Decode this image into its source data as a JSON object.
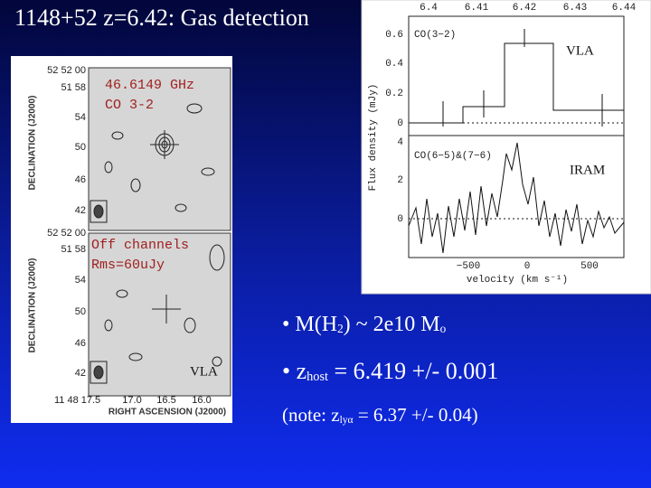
{
  "title": "1148+52 z=6.42: Gas detection",
  "map": {
    "y_axis_label": "DECLINATION (J2000)",
    "top_yticks": [
      "52 52 00",
      "51 58",
      "54",
      "50",
      "46",
      "42"
    ],
    "bottom_yticks": [
      "52 52 00",
      "51 58",
      "54",
      "50",
      "46",
      "42"
    ],
    "xticks": [
      "11 48 17.5",
      "17.0",
      "16.5",
      "16.0"
    ],
    "x_axis_label": "RIGHT ASCENSION (J2000)",
    "top_label_1": "46.6149 GHz",
    "top_label_2": "CO 3-2",
    "bottom_label_1": "Off channels",
    "bottom_label_2": "Rms=60uJy",
    "bottom_label_3": "VLA"
  },
  "spectrum": {
    "top_xticks": [
      "6.4",
      "6.41",
      "6.42",
      "6.43",
      "6.44"
    ],
    "upper_yticks": [
      "0.6",
      "0.4",
      "0.2",
      "0"
    ],
    "lower_yticks": [
      "4",
      "2",
      "0"
    ],
    "xticks": [
      "−500",
      "0",
      "500"
    ],
    "x_axis_label": "velocity (km s⁻¹)",
    "y_axis_label": "Flux density (mJy)",
    "upper_line": "CO(3−2)",
    "upper_instrument": "VLA",
    "lower_line": "CO(6−5)&(7−6)",
    "lower_instrument": "IRAM"
  },
  "bullets": {
    "mass": [
      "•",
      "M(H",
      "2",
      ") ~ 2e10 M",
      "o"
    ],
    "zhost": [
      "•",
      "z",
      "host",
      " = 6.419 +/- 0.001"
    ],
    "note": [
      "(note: z",
      "lyα",
      " = 6.37 +/- 0.04)"
    ]
  }
}
